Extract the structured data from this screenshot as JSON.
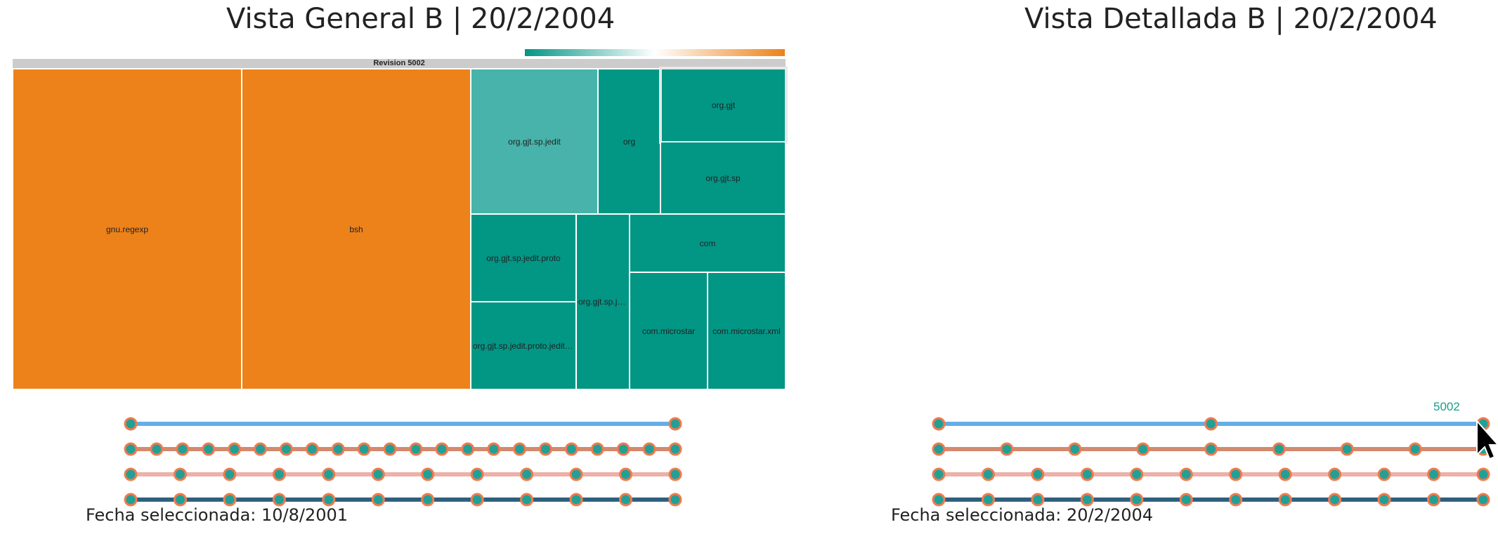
{
  "left_panel": {
    "title": "Vista General B | 20/2/2004",
    "revision_label": "Revision 5002",
    "treemap_cells": [
      {
        "label": "gnu.regexp",
        "color": "#ed821a"
      },
      {
        "label": "bsh",
        "color": "#ed821a"
      },
      {
        "label": "org.gjt.sp.jedit",
        "color": "#48b3aa"
      },
      {
        "label": "org",
        "color": "#029685"
      },
      {
        "label": "org.gjt",
        "color": "#029685"
      },
      {
        "label": "org.gjt.sp",
        "color": "#029685"
      },
      {
        "label": "org.gjt.sp.jedit.proto",
        "color": "#029685"
      },
      {
        "label": "org.gjt.sp.jedit.proto.jeditr…",
        "color": "#029685"
      },
      {
        "label": "org.gjt.sp.je…",
        "color": "#029685"
      },
      {
        "label": "com",
        "color": "#029685"
      },
      {
        "label": "com.microstar",
        "color": "#029685"
      },
      {
        "label": "com.microstar.xml",
        "color": "#029685"
      }
    ],
    "selected_date": "Fecha seleccionada: 10/8/2001"
  },
  "right_panel": {
    "title": "Vista Detallada B | 20/2/2004",
    "revision_number": "5002",
    "selected_date": "Fecha seleccionada: 20/2/2004"
  },
  "colors": {
    "scale_low": "#029685",
    "scale_mid": "#ffffff",
    "scale_high": "#ed821a",
    "dot_fill": "#22a096",
    "dot_stroke": "#f07b4f",
    "line_colors": [
      "#64aee8",
      "#d38a6e",
      "#eeb0a8",
      "#2f5f7e"
    ]
  },
  "timelines": {
    "left": [
      {
        "dots": 2
      },
      {
        "dots": 22
      },
      {
        "dots": 12
      },
      {
        "dots": 12
      }
    ],
    "right": [
      {
        "dots": 3
      },
      {
        "dots": 9
      },
      {
        "dots": 12
      },
      {
        "dots": 12
      }
    ]
  },
  "icons": {
    "cursor": "mouse-pointer-icon"
  }
}
